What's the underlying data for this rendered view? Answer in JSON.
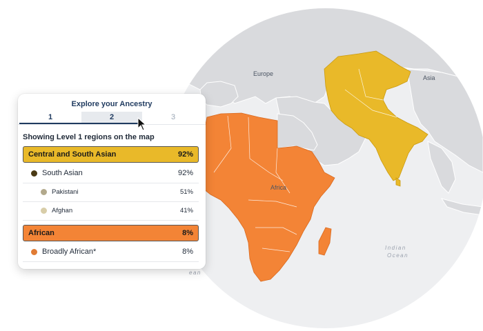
{
  "map": {
    "labels": {
      "europe": "Europe",
      "asia": "Asia",
      "africa": "Africa",
      "ocean_line1": "Indian",
      "ocean_line2": "Ocean",
      "partial": "ean"
    },
    "colors": {
      "land": "#d9dadd",
      "globe": "#eeeff1",
      "central_south_asian": "#e9b929",
      "african": "#f38436"
    }
  },
  "panel": {
    "title": "Explore your Ancestry",
    "tabs": [
      "1",
      "2",
      "3"
    ],
    "active_tab": "2",
    "showing_text": "Showing Level 1 regions on the map",
    "groups": [
      {
        "name": "Central and South Asian",
        "percent": "92%",
        "color": "#e9b929",
        "items": [
          {
            "name": "South Asian",
            "percent": "92%",
            "dot_color": "#4a3a14",
            "level": 1
          },
          {
            "name": "Pakistani",
            "percent": "51%",
            "dot_color": "#b2a98c",
            "level": 2
          },
          {
            "name": "Afghan",
            "percent": "41%",
            "dot_color": "#d8cda8",
            "level": 2
          }
        ]
      },
      {
        "name": "African",
        "percent": "8%",
        "color": "#f38436",
        "items": [
          {
            "name": "Broadly African*",
            "percent": "8%",
            "dot_color": "#e07b34",
            "level": 1
          }
        ]
      }
    ]
  }
}
